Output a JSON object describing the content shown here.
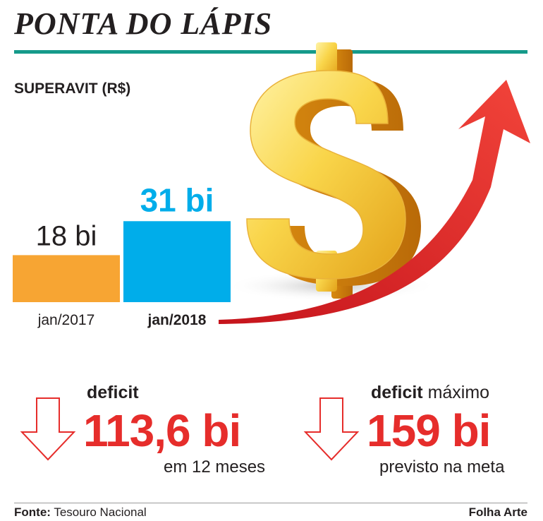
{
  "header": {
    "title": "PONTA DO LÁPIS",
    "section_label": "SUPERAVIT (R$)"
  },
  "colors": {
    "accent_rule": "#159a8a",
    "bar_2017": "#f7a533",
    "bar_2018": "#00adea",
    "deficit_red": "#e62d2b"
  },
  "chart_data": {
    "type": "bar",
    "title": "SUPERAVIT (R$)",
    "categories": [
      "jan/2017",
      "jan/2018"
    ],
    "values": [
      18,
      31
    ],
    "value_labels": [
      "18 bi",
      "31 bi"
    ],
    "unit": "bi",
    "highlighted_category": "jan/2018",
    "bar_colors": [
      "#f7a533",
      "#00adea"
    ],
    "grid": false
  },
  "stats": {
    "deficit_12m": {
      "label_bold": "deficit",
      "label_rest": "",
      "value": "113,6 bi",
      "note": "em 12 meses"
    },
    "deficit_max": {
      "label_bold": "deficit",
      "label_rest": " máximo",
      "value": "159 bi",
      "note": "previsto na meta"
    }
  },
  "footer": {
    "source_label": "Fonte:",
    "source_value": " Tesouro Nacional",
    "credit": "Folha Arte"
  },
  "icons": {
    "illustration": "dollar-sign-with-rising-arrow-icon",
    "down_arrow": "down-arrow-icon"
  }
}
